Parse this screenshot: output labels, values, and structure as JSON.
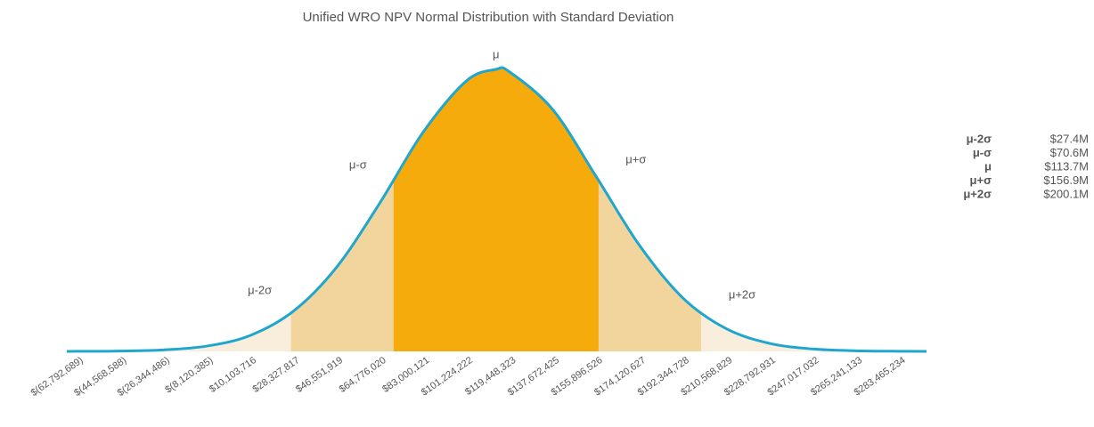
{
  "chart_data": {
    "type": "normal-distribution",
    "title": "Unified WRO NPV Normal Distribution with Standard Deviation",
    "x": [
      -67000000,
      -62792689,
      -44568588,
      -26344486,
      -8120385,
      10103716,
      28327817,
      46551919,
      64776020,
      83000121,
      101224222,
      113700000,
      119448323,
      137672425,
      155896526,
      174120627,
      192344728,
      210568829,
      228792931,
      247017032,
      265241133,
      283465234,
      295000000
    ],
    "values": [
      0.0001,
      0.0002,
      0.0012,
      0.0052,
      0.0187,
      0.056,
      0.142,
      0.298,
      0.526,
      0.777,
      0.959,
      1,
      0.991,
      0.857,
      0.62,
      0.376,
      0.19,
      0.081,
      0.0286,
      0.0085,
      0.0021,
      0.0004,
      0.0001
    ],
    "line_color": "#1fa6cf",
    "band_colors": [
      "#f8eedb",
      "#f1d59c",
      "#f5ab0c"
    ],
    "xlim": [
      -67000000,
      295000000
    ],
    "ylim": [
      0,
      1
    ],
    "xticks": [
      {
        "value": -62792689,
        "label": "$(62,792,689)"
      },
      {
        "value": -44568588,
        "label": "$(44,568,588)"
      },
      {
        "value": -26344486,
        "label": "$(26,344,486)"
      },
      {
        "value": -8120385,
        "label": "$(8,120,385)"
      },
      {
        "value": 10103716,
        "label": "$10,103,716"
      },
      {
        "value": 28327817,
        "label": "$28,327,817"
      },
      {
        "value": 46551919,
        "label": "$46,551,919"
      },
      {
        "value": 64776020,
        "label": "$64,776,020"
      },
      {
        "value": 83000121,
        "label": "$83,000,121"
      },
      {
        "value": 101224222,
        "label": "$101,224,222"
      },
      {
        "value": 119448323,
        "label": "$119,448,323"
      },
      {
        "value": 137672425,
        "label": "$137,672,425"
      },
      {
        "value": 155896526,
        "label": "$155,896,526"
      },
      {
        "value": 174120627,
        "label": "$174,120,627"
      },
      {
        "value": 192344728,
        "label": "$192,344,728"
      },
      {
        "value": 210568829,
        "label": "$210,568,829"
      },
      {
        "value": 228792931,
        "label": "$228,792,931"
      },
      {
        "value": 247017032,
        "label": "$247,017,032"
      },
      {
        "value": 265241133,
        "label": "$265,241,133"
      },
      {
        "value": 283465234,
        "label": "$283,465,234"
      }
    ],
    "markers": {
      "labels": [
        "μ-2σ",
        "μ-σ",
        "μ",
        "μ+σ",
        "μ+2σ"
      ],
      "values": [
        27400000,
        70600000,
        113700000,
        156900000,
        200100000
      ],
      "value_labels": [
        "$27.4M",
        "$70.6M",
        "$113.7M",
        "$156.9M",
        "$200.1M"
      ]
    }
  }
}
